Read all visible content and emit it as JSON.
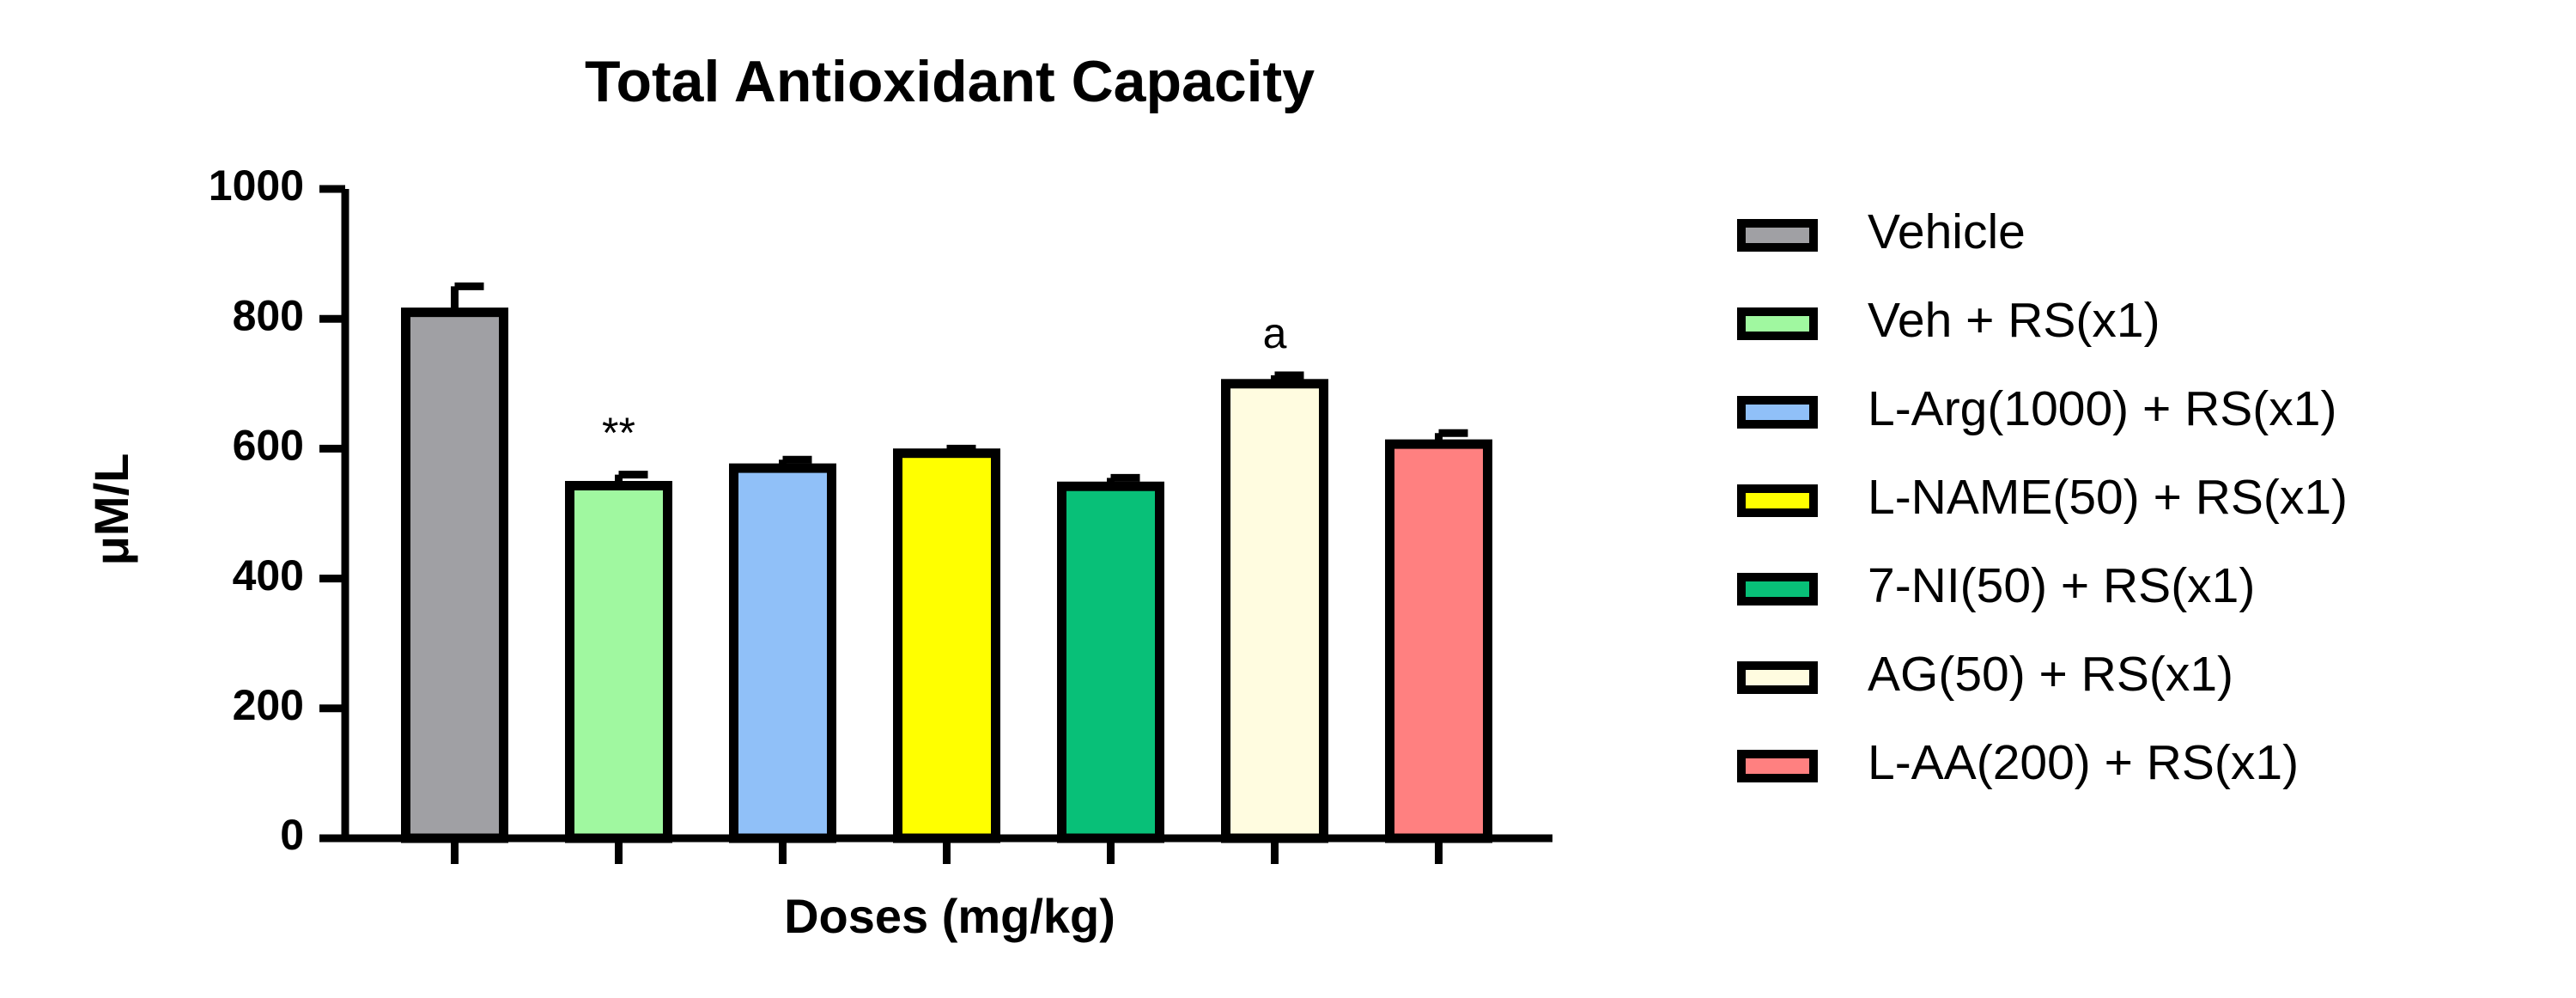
{
  "chart_data": {
    "type": "bar",
    "title": "Total Antioxidant Capacity",
    "x_label": "Doses (mg/kg)",
    "y_label": "μM/L",
    "categories": [
      null,
      null,
      null,
      null,
      null,
      null,
      null
    ],
    "values": [
      810,
      543,
      570,
      593,
      542,
      700,
      607
    ],
    "errors": [
      40,
      17,
      13,
      7,
      13,
      13,
      17
    ],
    "value_annotations": [
      null,
      "**",
      null,
      null,
      null,
      "a",
      null
    ],
    "colors": [
      "#a0a0a4",
      "#a0f8a0",
      "#90c0f8",
      "#ffff00",
      "#08c078",
      "#fffce0",
      "#ff8080"
    ],
    "legend": [
      "Vehicle",
      "Veh + RS(x1)",
      "L-Arg(1000) + RS(x1)",
      "L-NAME(50) + RS(x1)",
      "7-NI(50) + RS(x1)",
      "AG(50) + RS(x1)",
      "L-AA(200) + RS(x1)"
    ],
    "legend_position": "right",
    "ylim": [
      0,
      1000
    ],
    "yticks": [
      0,
      200,
      400,
      600,
      800,
      1000
    ],
    "grid": false
  }
}
